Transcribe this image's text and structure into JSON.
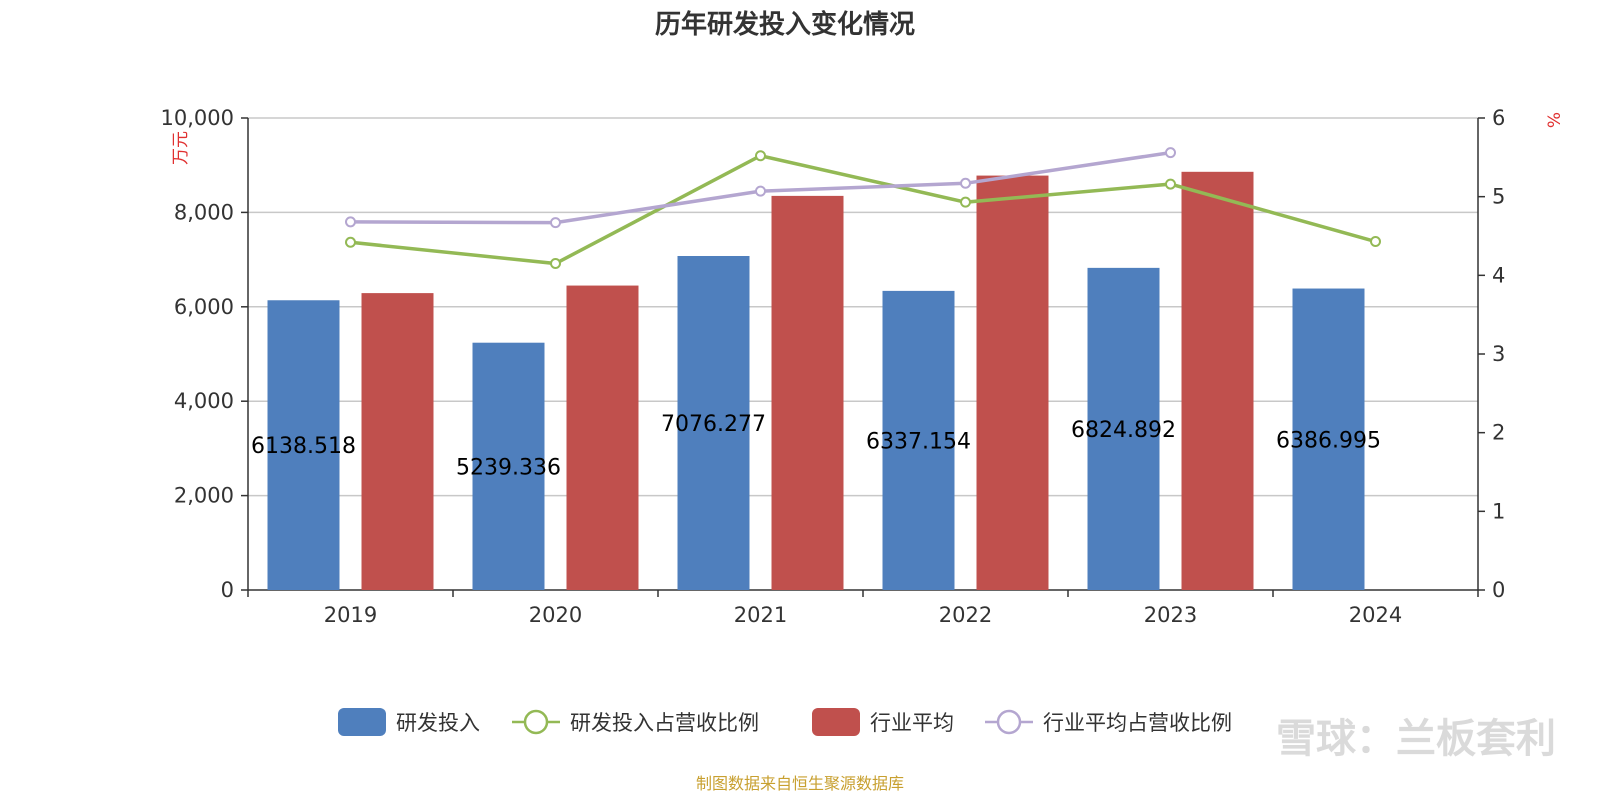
{
  "colors": {
    "rd": "#4f7fbd",
    "rd_ratio": "#93b955",
    "industry": "#c0504d",
    "industry_ratio": "#b4a6d0",
    "grid": "#c8c8c8",
    "axis": "#333333"
  },
  "chart_data": {
    "type": "bar",
    "title": "历年研发投入变化情况",
    "categories": [
      "2019",
      "2020",
      "2021",
      "2022",
      "2023",
      "2024"
    ],
    "y_left": {
      "label": "万元",
      "ylim": [
        0,
        10000
      ],
      "ticks": [
        "0",
        "2,000",
        "4,000",
        "6,000",
        "8,000",
        "10,000"
      ]
    },
    "y_right": {
      "label": "%",
      "ylim": [
        0,
        6
      ],
      "ticks": [
        "0",
        "1",
        "2",
        "3",
        "4",
        "5",
        "6"
      ]
    },
    "series": [
      {
        "name": "研发投入",
        "type": "bar",
        "axis": "left",
        "values": [
          6138.518,
          5239.336,
          7076.277,
          6337.154,
          6824.892,
          6386.995
        ],
        "labels": [
          "6138.518",
          "5239.336",
          "7076.277",
          "6337.154",
          "6824.892",
          "6386.995"
        ]
      },
      {
        "name": "研发投入占营收比例",
        "type": "line",
        "axis": "right",
        "values": [
          4.42,
          4.15,
          5.52,
          4.93,
          5.16,
          4.43
        ]
      },
      {
        "name": "行业平均",
        "type": "bar",
        "axis": "left",
        "values": [
          6290,
          6450,
          8350,
          8780,
          8860,
          null
        ]
      },
      {
        "name": "行业平均占营收比例",
        "type": "line",
        "axis": "right",
        "values": [
          4.68,
          4.67,
          5.07,
          5.17,
          5.56,
          null
        ]
      }
    ],
    "legend_position": "bottom",
    "grid": true
  },
  "source_note": "制图数据来自恒生聚源数据库",
  "watermark": "雪球：兰板套利"
}
